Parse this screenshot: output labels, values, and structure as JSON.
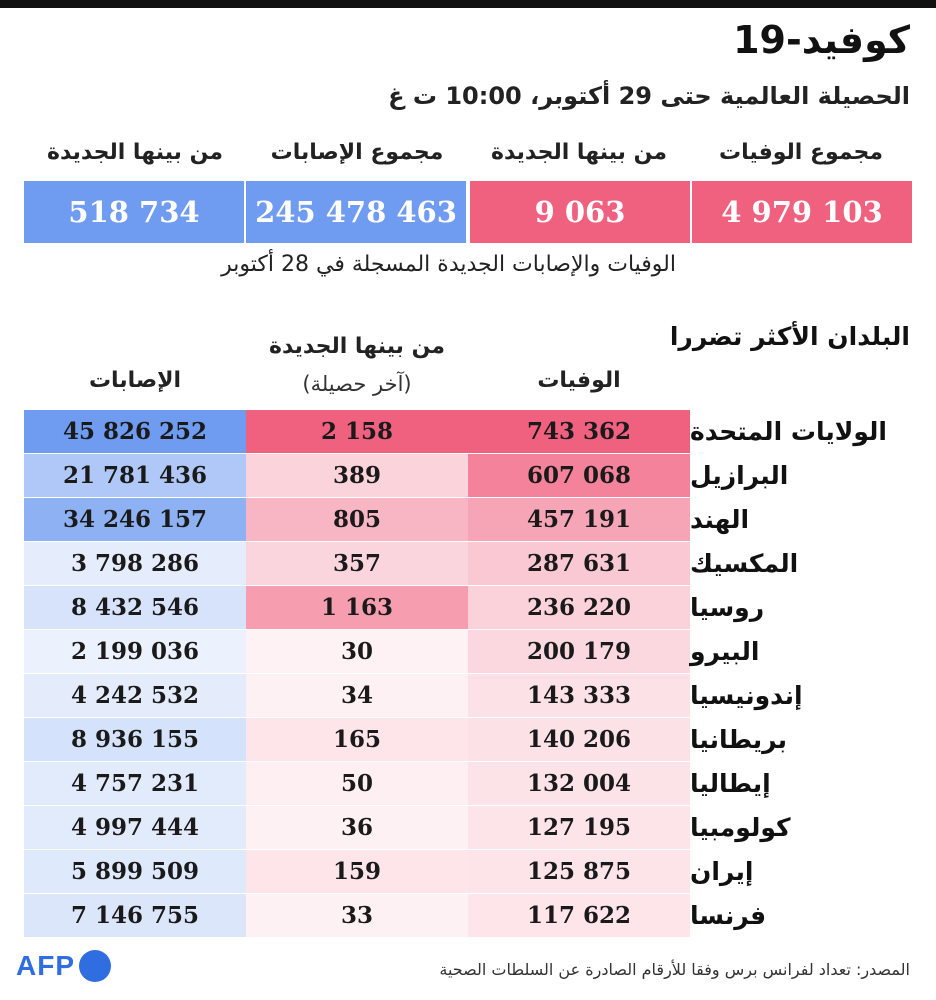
{
  "title": "كوفيد-19",
  "subtitle": "الحصيلة العالمية حتى 29 أكتوبر، 10:00 ت غ",
  "summary": {
    "total_deaths_label": "مجموع الوفيات",
    "new_deaths_label": "من بينها الجديدة",
    "total_cases_label": "مجموع الإصابات",
    "new_cases_label": "من بينها الجديدة",
    "total_deaths": "4 979 103",
    "new_deaths": "9 063",
    "total_cases": "245 478 463",
    "new_cases": "518 734"
  },
  "note": "الوفيات والإصابات الجديدة المسجلة في 28 أكتوبر",
  "table": {
    "section_title": "البلدان الأكثر تضررا",
    "col_deaths": "الوفيات",
    "col_new": "من بينها الجديدة",
    "col_new_sub": "(آخر حصيلة)",
    "col_cases": "الإصابات"
  },
  "colors": {
    "pink_strong": "#f0607f",
    "blue_strong": "#6f9cf0",
    "white": "#ffffff"
  },
  "chart_data": {
    "type": "table",
    "title": "كوفيد-19",
    "columns": [
      "البلدان الأكثر تضررا",
      "الوفيات",
      "من بينها الجديدة",
      "الإصابات"
    ],
    "rows": [
      {
        "country": "الولايات المتحدة",
        "deaths": 743362,
        "new": 2158,
        "cases": 45826252
      },
      {
        "country": "البرازيل",
        "deaths": 607068,
        "new": 389,
        "cases": 21781436
      },
      {
        "country": "الهند",
        "deaths": 457191,
        "new": 805,
        "cases": 34246157
      },
      {
        "country": "المكسيك",
        "deaths": 287631,
        "new": 357,
        "cases": 3798286
      },
      {
        "country": "روسيا",
        "deaths": 236220,
        "new": 1163,
        "cases": 8432546
      },
      {
        "country": "البيرو",
        "deaths": 200179,
        "new": 30,
        "cases": 2199036
      },
      {
        "country": "إندونيسيا",
        "deaths": 143333,
        "new": 34,
        "cases": 4242532
      },
      {
        "country": "بريطانيا",
        "deaths": 140206,
        "new": 165,
        "cases": 8936155
      },
      {
        "country": "إيطاليا",
        "deaths": 132004,
        "new": 50,
        "cases": 4757231
      },
      {
        "country": "كولومبيا",
        "deaths": 127195,
        "new": 36,
        "cases": 4997444
      },
      {
        "country": "إيران",
        "deaths": 125875,
        "new": 159,
        "cases": 5899509
      },
      {
        "country": "فرنسا",
        "deaths": 117622,
        "new": 33,
        "cases": 7146755
      }
    ]
  },
  "source": "المصدر: تعداد لفرانس برس وفقا للأرقام الصادرة عن السلطات الصحية",
  "logo_text": "AFP"
}
